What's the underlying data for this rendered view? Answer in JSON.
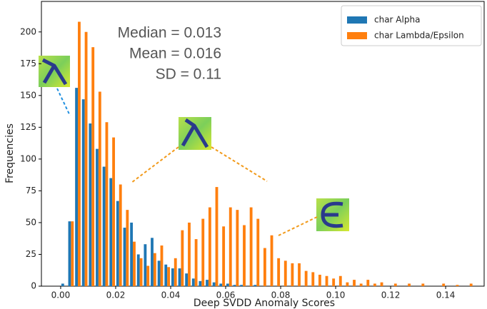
{
  "chart_data": {
    "type": "histogram",
    "xlabel": "Deep SVDD Anomaly Scores",
    "ylabel": "Frequencies",
    "annotations": [
      "Median = 0.013",
      "Mean = 0.016",
      "SD = 0.11"
    ],
    "bins": [
      0,
      0.0025,
      0.005,
      0.0075,
      0.01,
      0.0125,
      0.015,
      0.0175,
      0.02,
      0.0225,
      0.025,
      0.0275,
      0.03,
      0.0325,
      0.035,
      0.0375,
      0.04,
      0.0425,
      0.045,
      0.0475,
      0.05,
      0.0525,
      0.055,
      0.0575,
      0.06,
      0.0625,
      0.065,
      0.0675,
      0.07,
      0.0725,
      0.075,
      0.0775,
      0.08,
      0.0825,
      0.085,
      0.0875,
      0.09,
      0.0925,
      0.095,
      0.0975,
      0.1,
      0.1025,
      0.105,
      0.1075,
      0.11,
      0.1125,
      0.115,
      0.1175,
      0.12,
      0.1225,
      0.125,
      0.1275,
      0.13,
      0.1325,
      0.135,
      0.1375,
      0.14,
      0.1425,
      0.145,
      0.1475,
      0.15,
      0.1525
    ],
    "series": [
      {
        "name": "char Alpha",
        "color": "#1f77b4",
        "values": [
          2,
          51,
          156,
          147,
          128,
          108,
          94,
          85,
          67,
          46,
          50,
          25,
          33,
          38,
          20,
          17,
          14,
          14,
          10,
          6,
          4,
          5,
          3,
          2,
          2,
          1,
          1,
          0,
          1,
          0,
          0,
          0,
          0,
          0,
          0,
          0,
          0,
          0,
          0,
          0,
          0,
          0,
          0,
          0,
          0,
          0,
          0,
          0,
          0,
          0,
          0,
          0,
          0,
          0,
          0,
          0,
          0,
          0,
          0,
          0,
          0
        ]
      },
      {
        "name": "char Lambda/Epsilon",
        "color": "#ff7f0e",
        "values": [
          0,
          51,
          208,
          200,
          188,
          153,
          129,
          117,
          80,
          60,
          35,
          22,
          16,
          26,
          32,
          15,
          22,
          44,
          50,
          37,
          53,
          62,
          78,
          47,
          62,
          60,
          48,
          62,
          53,
          30,
          40,
          22,
          20,
          18,
          18,
          12,
          11,
          9,
          8,
          6,
          8,
          3,
          5,
          2,
          5,
          2,
          3,
          0,
          2,
          0,
          2,
          0,
          2,
          0,
          0,
          2,
          0,
          1,
          0,
          2,
          0
        ]
      }
    ],
    "xlim": [
      -0.007,
      0.154
    ],
    "ylim": [
      0,
      224
    ],
    "xticks": [
      {
        "value": 0,
        "label": "0.00"
      },
      {
        "value": 0.02,
        "label": "0.02"
      },
      {
        "value": 0.04,
        "label": "0.04"
      },
      {
        "value": 0.06,
        "label": "0.06"
      },
      {
        "value": 0.08,
        "label": "0.08"
      },
      {
        "value": 0.1,
        "label": "0.10"
      },
      {
        "value": 0.12,
        "label": "0.12"
      },
      {
        "value": 0.14,
        "label": "0.14"
      }
    ],
    "yticks": [
      0,
      25,
      50,
      75,
      100,
      125,
      150,
      175,
      200
    ],
    "legend": "upper right"
  }
}
